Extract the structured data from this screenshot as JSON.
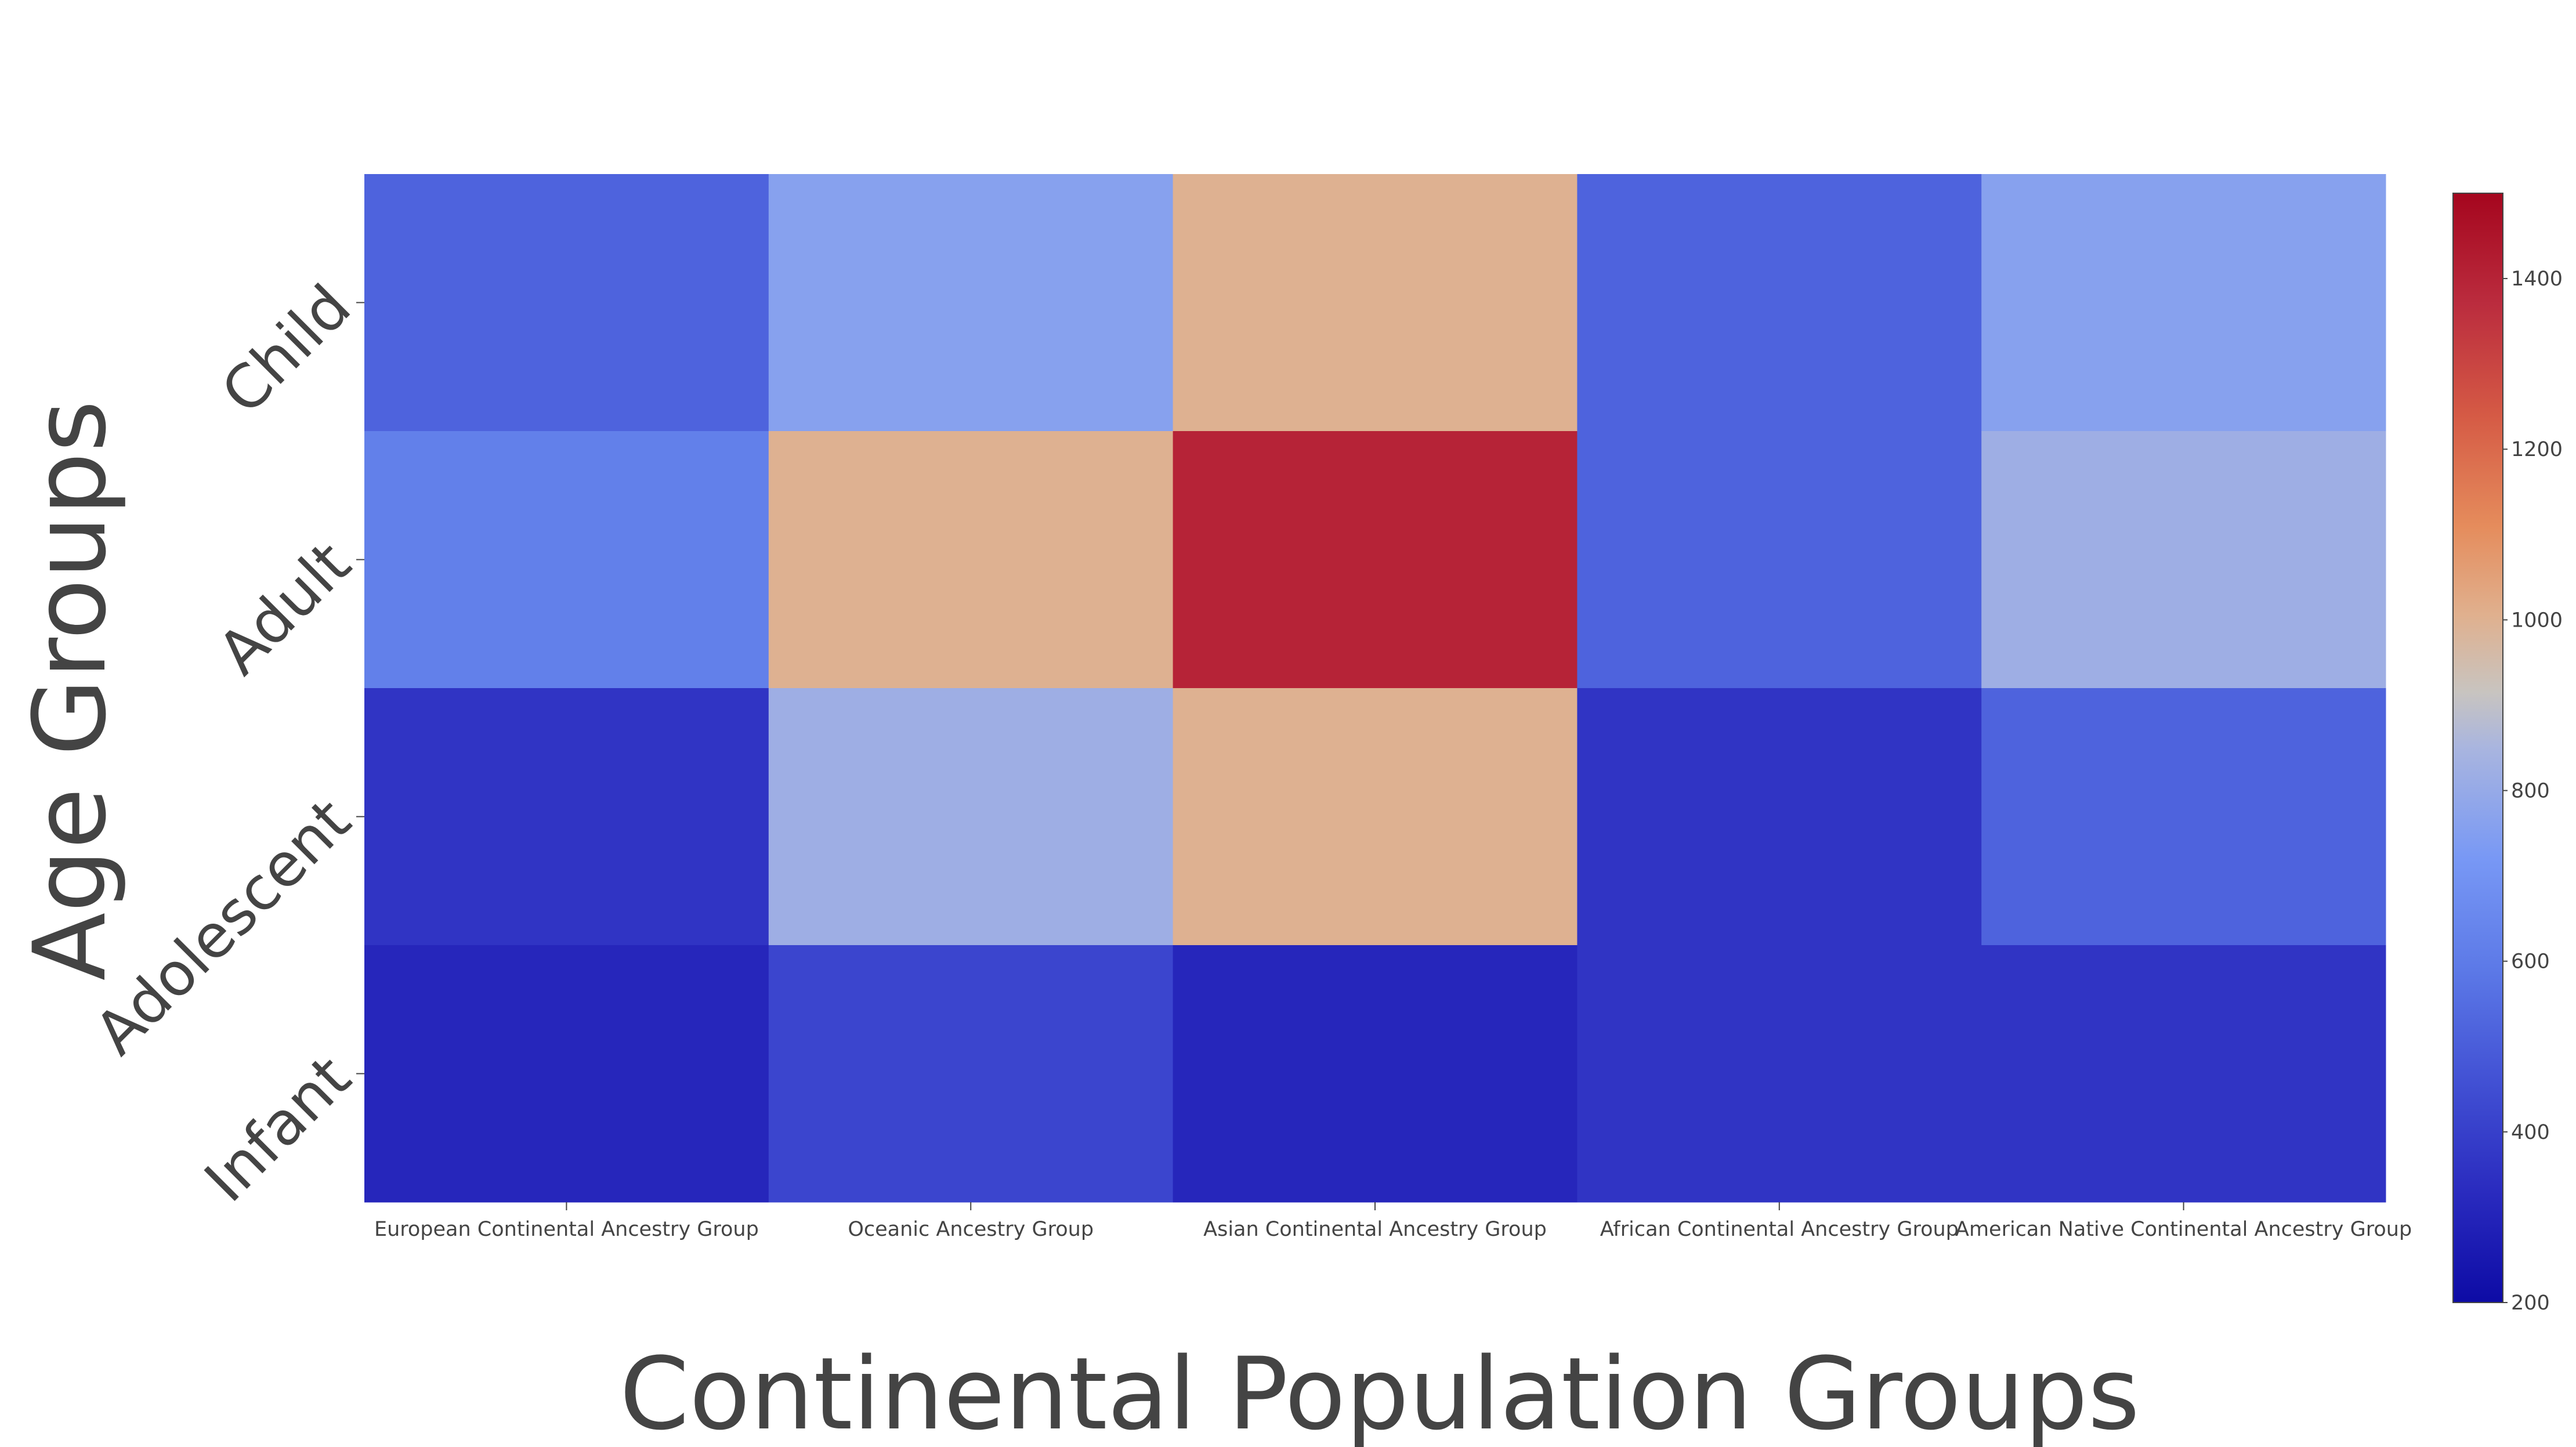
{
  "chart_data": {
    "type": "heatmap",
    "title": "",
    "xlabel": "Continental Population Groups",
    "ylabel": "Age Groups",
    "x": [
      "European Continental Ancestry Group",
      "Oceanic Ancestry Group",
      "Asian Continental Ancestry Group",
      "African Continental Ancestry Group",
      "American Native Continental Ancestry Group"
    ],
    "y": [
      "Child",
      "Adult",
      "Adolescent",
      "Infant"
    ],
    "z": [
      [
        520,
        760,
        1000,
        520,
        760
      ],
      [
        620,
        1000,
        1400,
        520,
        820
      ],
      [
        360,
        820,
        1000,
        360,
        520
      ],
      [
        310,
        420,
        310,
        360,
        360
      ]
    ],
    "colorscale": {
      "range": [
        200,
        1500
      ],
      "ticks": [
        "200",
        "400",
        "600",
        "800",
        "1000",
        "1200",
        "1400"
      ],
      "stops": [
        [
          0.0,
          "#0d0ba5"
        ],
        [
          0.1,
          "#2a2bbf"
        ],
        [
          0.2,
          "#4251d4"
        ],
        [
          0.3,
          "#5c79e7"
        ],
        [
          0.4,
          "#7898f5"
        ],
        [
          0.5,
          "#a9b5df"
        ],
        [
          0.55,
          "#c8c4c0"
        ],
        [
          0.62,
          "#e0b08e"
        ],
        [
          0.7,
          "#e58c5c"
        ],
        [
          0.8,
          "#d55a45"
        ],
        [
          0.9,
          "#bb2c3e"
        ],
        [
          1.0,
          "#a5061e"
        ]
      ]
    },
    "grid": false
  }
}
